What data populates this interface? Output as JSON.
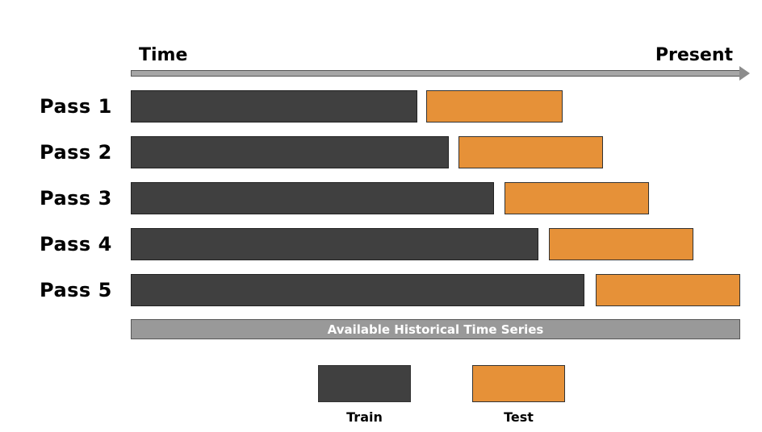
{
  "timeline": {
    "start_label": "Time",
    "end_label": "Present"
  },
  "passes": [
    {
      "label": "Pass 1"
    },
    {
      "label": "Pass 2"
    },
    {
      "label": "Pass 3"
    },
    {
      "label": "Pass 4"
    },
    {
      "label": "Pass 5"
    }
  ],
  "history_bar": {
    "label": "Available Historical Time Series"
  },
  "legend": {
    "train_label": "Train",
    "test_label": "Test"
  },
  "colors": {
    "train": "#404040",
    "test": "#e69138",
    "history": "#999999"
  }
}
